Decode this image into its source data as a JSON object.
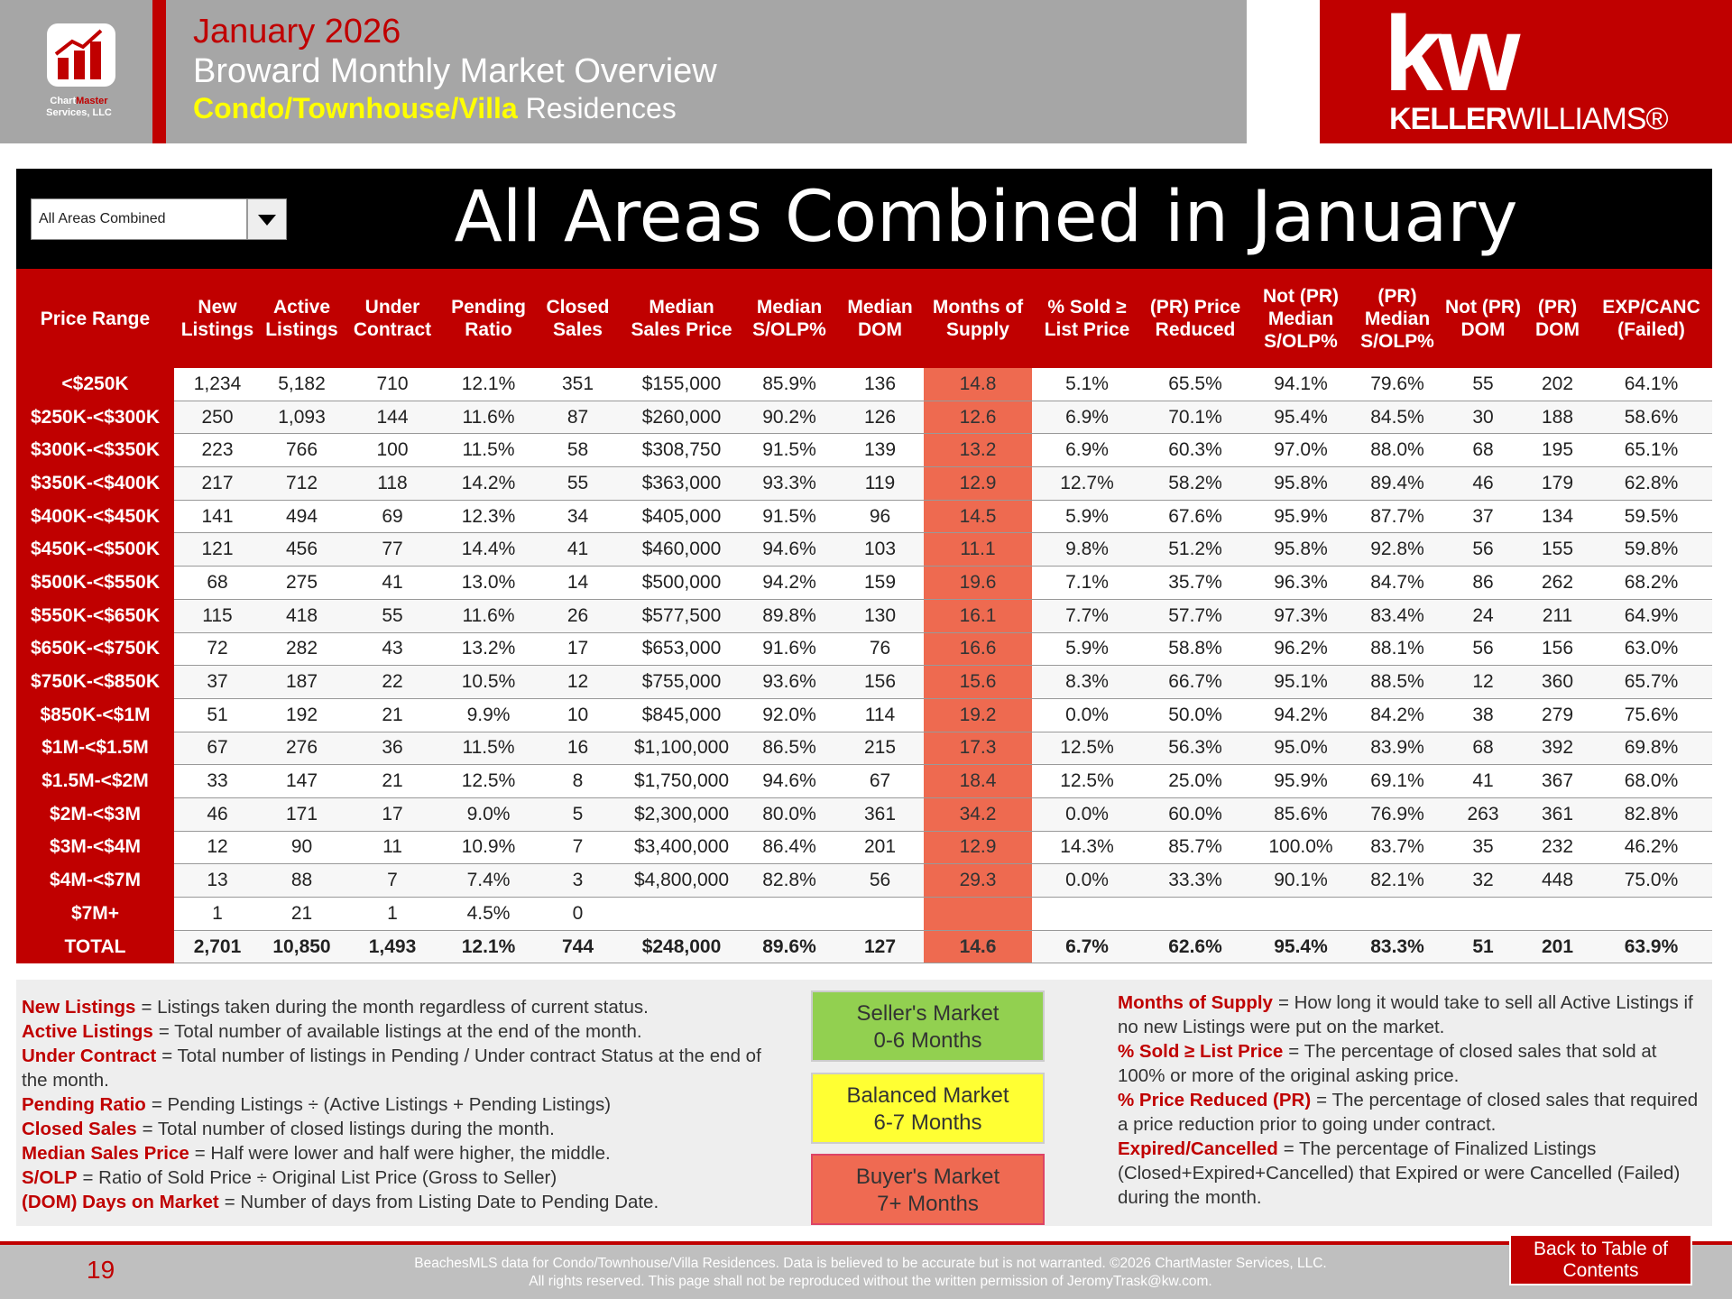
{
  "header": {
    "month": "January 2026",
    "title": "Broward Monthly Market Overview",
    "segment_highlight": "Condo/Townhouse/Villa",
    "segment_rest": "Residences"
  },
  "logo": {
    "name_part1": "Chart",
    "name_part2": "Master",
    "name_line2": "Services, LLC"
  },
  "brand": {
    "mark": "kw",
    "name_bold": "KELLER",
    "name_light": "WILLIAMS®"
  },
  "dropdown": {
    "selected": "All Areas Combined"
  },
  "table": {
    "title": "All Areas Combined in January",
    "columns": [
      "Price Range",
      "New Listings",
      "Active Listings",
      "Under Contract",
      "Pending Ratio",
      "Closed Sales",
      "Median Sales Price",
      "Median S/OLP%",
      "Median DOM",
      "Months of Supply",
      "% Sold ≥ List Price",
      "(PR) Price Reduced",
      "Not (PR) Median S/OLP%",
      "(PR) Median S/OLP%",
      "Not (PR) DOM",
      "(PR) DOM",
      "EXP/CANC (Failed)"
    ],
    "rows": [
      {
        "label": "<$250K",
        "cells": [
          "1,234",
          "5,182",
          "710",
          "12.1%",
          "351",
          "$155,000",
          "85.9%",
          "136",
          "14.8",
          "5.1%",
          "65.5%",
          "94.1%",
          "79.6%",
          "55",
          "202",
          "64.1%"
        ]
      },
      {
        "label": "$250K-<$300K",
        "cells": [
          "250",
          "1,093",
          "144",
          "11.6%",
          "87",
          "$260,000",
          "90.2%",
          "126",
          "12.6",
          "6.9%",
          "70.1%",
          "95.4%",
          "84.5%",
          "30",
          "188",
          "58.6%"
        ]
      },
      {
        "label": "$300K-<$350K",
        "cells": [
          "223",
          "766",
          "100",
          "11.5%",
          "58",
          "$308,750",
          "91.5%",
          "139",
          "13.2",
          "6.9%",
          "60.3%",
          "97.0%",
          "88.0%",
          "68",
          "195",
          "65.1%"
        ]
      },
      {
        "label": "$350K-<$400K",
        "cells": [
          "217",
          "712",
          "118",
          "14.2%",
          "55",
          "$363,000",
          "93.3%",
          "119",
          "12.9",
          "12.7%",
          "58.2%",
          "95.8%",
          "89.4%",
          "46",
          "179",
          "62.8%"
        ]
      },
      {
        "label": "$400K-<$450K",
        "cells": [
          "141",
          "494",
          "69",
          "12.3%",
          "34",
          "$405,000",
          "91.5%",
          "96",
          "14.5",
          "5.9%",
          "67.6%",
          "95.9%",
          "87.7%",
          "37",
          "134",
          "59.5%"
        ]
      },
      {
        "label": "$450K-<$500K",
        "cells": [
          "121",
          "456",
          "77",
          "14.4%",
          "41",
          "$460,000",
          "94.6%",
          "103",
          "11.1",
          "9.8%",
          "51.2%",
          "95.8%",
          "92.8%",
          "56",
          "155",
          "59.8%"
        ]
      },
      {
        "label": "$500K-<$550K",
        "cells": [
          "68",
          "275",
          "41",
          "13.0%",
          "14",
          "$500,000",
          "94.2%",
          "159",
          "19.6",
          "7.1%",
          "35.7%",
          "96.3%",
          "84.7%",
          "86",
          "262",
          "68.2%"
        ]
      },
      {
        "label": "$550K-<$650K",
        "cells": [
          "115",
          "418",
          "55",
          "11.6%",
          "26",
          "$577,500",
          "89.8%",
          "130",
          "16.1",
          "7.7%",
          "57.7%",
          "97.3%",
          "83.4%",
          "24",
          "211",
          "64.9%"
        ]
      },
      {
        "label": "$650K-<$750K",
        "cells": [
          "72",
          "282",
          "43",
          "13.2%",
          "17",
          "$653,000",
          "91.6%",
          "76",
          "16.6",
          "5.9%",
          "58.8%",
          "96.2%",
          "88.1%",
          "56",
          "156",
          "63.0%"
        ]
      },
      {
        "label": "$750K-<$850K",
        "cells": [
          "37",
          "187",
          "22",
          "10.5%",
          "12",
          "$755,000",
          "93.6%",
          "156",
          "15.6",
          "8.3%",
          "66.7%",
          "95.1%",
          "88.5%",
          "12",
          "360",
          "65.7%"
        ]
      },
      {
        "label": "$850K-<$1M",
        "cells": [
          "51",
          "192",
          "21",
          "9.9%",
          "10",
          "$845,000",
          "92.0%",
          "114",
          "19.2",
          "0.0%",
          "50.0%",
          "94.2%",
          "84.2%",
          "38",
          "279",
          "75.6%"
        ]
      },
      {
        "label": "$1M-<$1.5M",
        "cells": [
          "67",
          "276",
          "36",
          "11.5%",
          "16",
          "$1,100,000",
          "86.5%",
          "215",
          "17.3",
          "12.5%",
          "56.3%",
          "95.0%",
          "83.9%",
          "68",
          "392",
          "69.8%"
        ]
      },
      {
        "label": "$1.5M-<$2M",
        "cells": [
          "33",
          "147",
          "21",
          "12.5%",
          "8",
          "$1,750,000",
          "94.6%",
          "67",
          "18.4",
          "12.5%",
          "25.0%",
          "95.9%",
          "69.1%",
          "41",
          "367",
          "68.0%"
        ]
      },
      {
        "label": "$2M-<$3M",
        "cells": [
          "46",
          "171",
          "17",
          "9.0%",
          "5",
          "$2,300,000",
          "80.0%",
          "361",
          "34.2",
          "0.0%",
          "60.0%",
          "85.6%",
          "76.9%",
          "263",
          "361",
          "82.8%"
        ]
      },
      {
        "label": "$3M-<$4M",
        "cells": [
          "12",
          "90",
          "11",
          "10.9%",
          "7",
          "$3,400,000",
          "86.4%",
          "201",
          "12.9",
          "14.3%",
          "85.7%",
          "100.0%",
          "83.7%",
          "35",
          "232",
          "46.2%"
        ]
      },
      {
        "label": "$4M-<$7M",
        "cells": [
          "13",
          "88",
          "7",
          "7.4%",
          "3",
          "$4,800,000",
          "82.8%",
          "56",
          "29.3",
          "0.0%",
          "33.3%",
          "90.1%",
          "82.1%",
          "32",
          "448",
          "75.0%"
        ]
      },
      {
        "label": "$7M+",
        "cells": [
          "1",
          "21",
          "1",
          "4.5%",
          "0"
        ]
      }
    ],
    "total": {
      "label": "TOTAL",
      "cells": [
        "2,701",
        "10,850",
        "1,493",
        "12.1%",
        "744",
        "$248,000",
        "89.6%",
        "127",
        "14.6",
        "6.7%",
        "62.6%",
        "95.4%",
        "83.3%",
        "51",
        "201",
        "63.9%"
      ]
    }
  },
  "definitions_left": [
    {
      "term": "New Listings",
      "text": "= Listings taken during the month regardless of current status."
    },
    {
      "term": "Active Listings",
      "text": "= Total number of available listings at the end of the month."
    },
    {
      "term": "Under Contract",
      "text": "= Total number of listings in Pending / Under contract Status at the end of the month."
    },
    {
      "term": "Pending Ratio",
      "text": "= Pending Listings ÷ (Active Listings + Pending Listings)"
    },
    {
      "term": "Closed Sales",
      "text": "= Total number of closed listings during the month."
    },
    {
      "term": "Median Sales Price",
      "text": "= Half were lower and half were higher, the middle."
    },
    {
      "term": "S/OLP",
      "text": "= Ratio of Sold Price ÷ Original List Price (Gross to Seller)"
    },
    {
      "term": "(DOM) Days on Market",
      "text": "= Number of days from Listing Date to Pending Date."
    }
  ],
  "markets": [
    {
      "name": "Seller's Market",
      "range": "0-6 Months"
    },
    {
      "name": "Balanced Market",
      "range": "6-7 Months"
    },
    {
      "name": "Buyer's Market",
      "range": "7+ Months"
    }
  ],
  "definitions_right": [
    {
      "term": "Months of Supply",
      "text": "= How long it would take to sell all Active Listings if no new Listings were put on the market."
    },
    {
      "term": "% Sold ≥ List Price",
      "text": "= The percentage of closed sales that sold at 100% or more of the original asking price."
    },
    {
      "term": "% Price Reduced (PR)",
      "text": "= The percentage of closed sales that required a price reduction prior to going under contract."
    },
    {
      "term": "Expired/Cancelled",
      "text": "= The percentage of Finalized Listings (Closed+Expired+Cancelled) that Expired or were Cancelled (Failed) during the month."
    }
  ],
  "footer": {
    "page": "19",
    "line1": "BeachesMLS data for Condo/Townhouse/Villa Residences.  Data is believed to be accurate but is not warranted.  ©2026  ChartMaster Services, LLC.",
    "line2": "All rights reserved. This page shall not be reproduced without the written permission of JeromyTrask@kw.com.",
    "back_link": "Back to Table of Contents"
  }
}
